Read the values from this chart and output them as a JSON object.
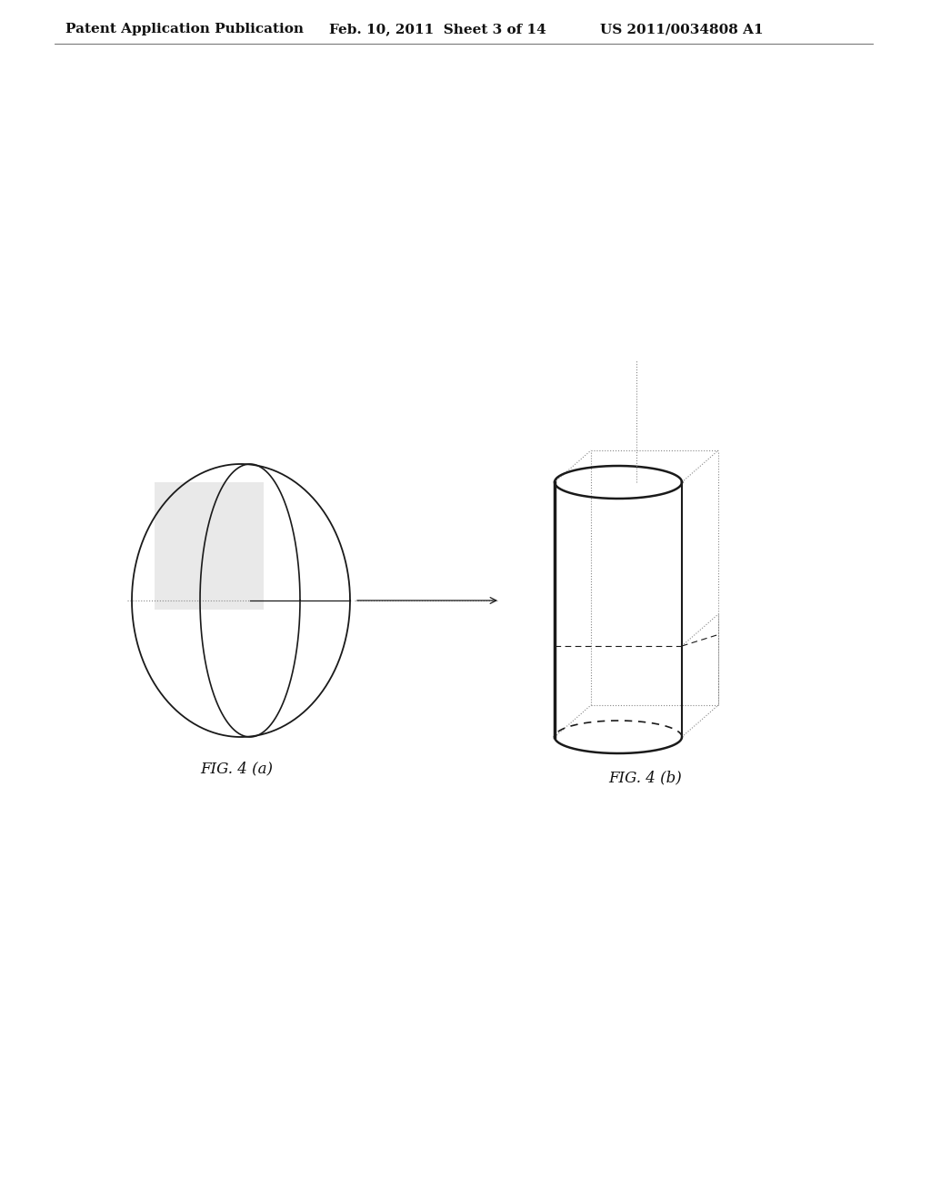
{
  "bg_color": "#ffffff",
  "header_left": "Patent Application Publication",
  "header_mid": "Feb. 10, 2011  Sheet 3 of 14",
  "header_right": "US 2011/0034808 A1",
  "header_fontsize": 11,
  "caption_a": "FIG. 4 (a)",
  "caption_b": "FIG. 4 (b)",
  "caption_fontsize": 12,
  "line_color": "#1a1a1a",
  "dashed_color": "#888888",
  "box_color": "#888888"
}
